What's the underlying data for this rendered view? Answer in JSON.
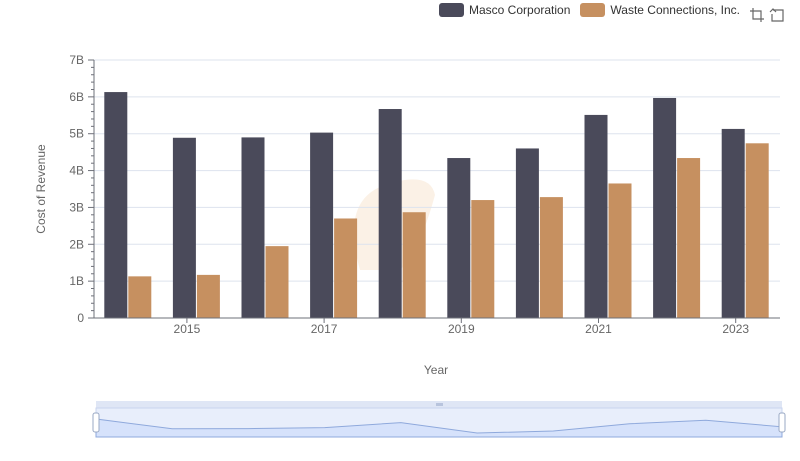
{
  "legend": {
    "items": [
      {
        "label": "Masco Corporation",
        "color": "#4a4a5a"
      },
      {
        "label": "Waste Connections, Inc.",
        "color": "#c69060"
      }
    ]
  },
  "toolbar": {
    "icons": [
      "zoom-select-icon",
      "reset-zoom-icon"
    ]
  },
  "colors": {
    "grid": "#dde3ee",
    "axis": "#6e7079",
    "slider_fill": "#d6e2fb",
    "slider_line": "#8fa9dc"
  },
  "chart_data": {
    "type": "bar",
    "title": "",
    "xlabel": "Year",
    "ylabel": "Cost of Revenue",
    "categories": [
      "2014",
      "2015",
      "2016",
      "2017",
      "2018",
      "2019",
      "2020",
      "2021",
      "2022",
      "2023"
    ],
    "x_tick_labels": [
      "2015",
      "2017",
      "2019",
      "2021",
      "2023"
    ],
    "y_ticks": [
      "0",
      "1B",
      "2B",
      "3B",
      "4B",
      "5B",
      "6B",
      "7B"
    ],
    "ylim": [
      0,
      7
    ],
    "y_unit": "billions",
    "series": [
      {
        "name": "Masco Corporation",
        "values": [
          6.13,
          4.89,
          4.9,
          5.03,
          5.67,
          4.34,
          4.6,
          5.51,
          5.97,
          5.13
        ]
      },
      {
        "name": "Waste Connections, Inc.",
        "values": [
          1.13,
          1.17,
          1.95,
          2.7,
          2.87,
          3.2,
          3.28,
          3.65,
          4.34,
          4.74
        ]
      }
    ],
    "grid": true,
    "legend_position": "top-right",
    "data_zoom_slider": true
  }
}
